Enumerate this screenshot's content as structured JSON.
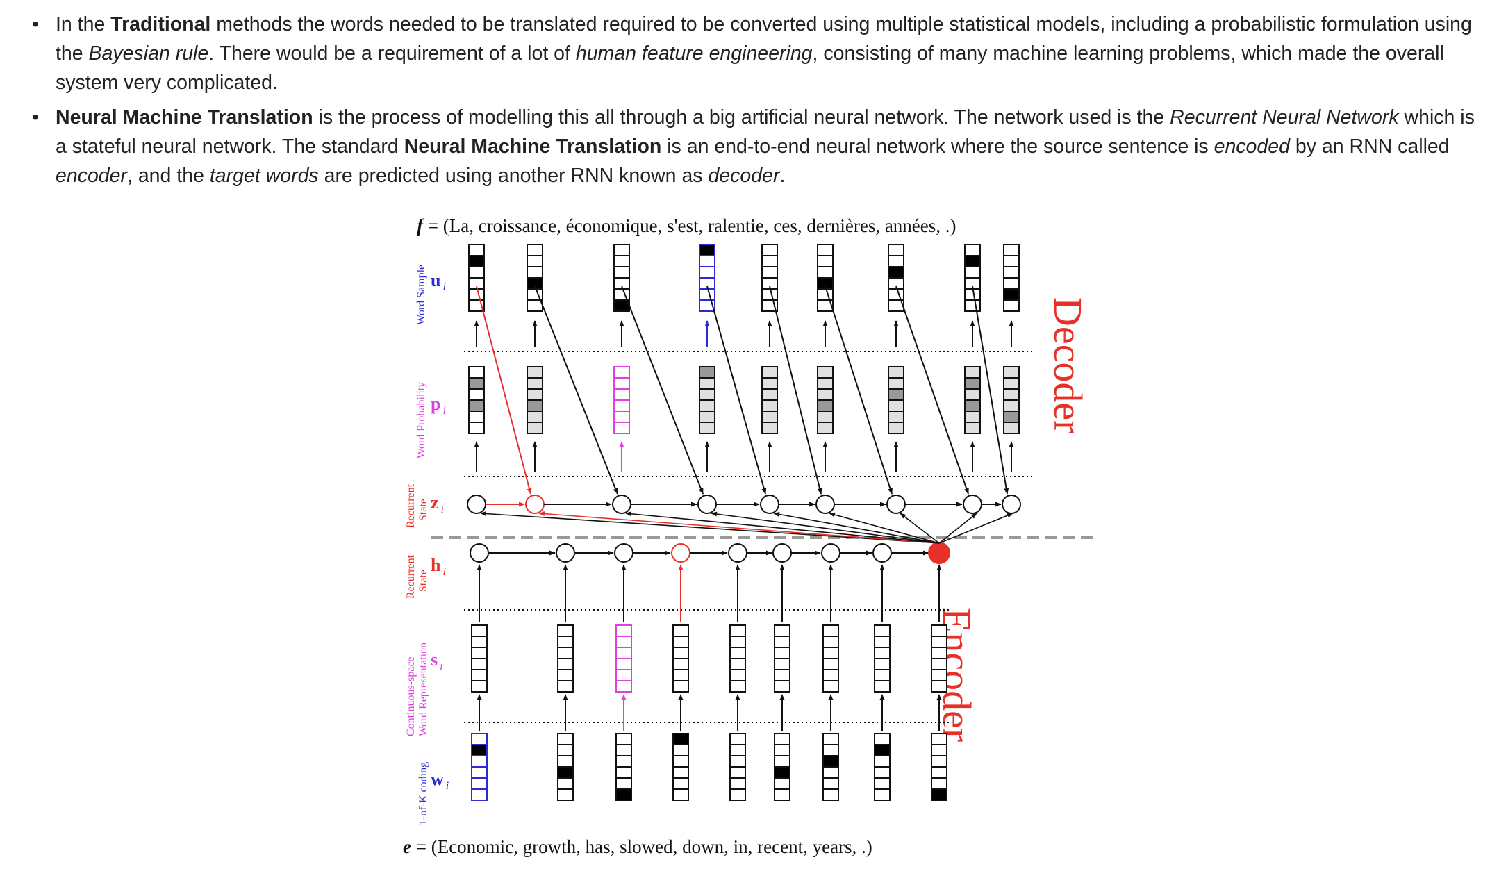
{
  "bullets": [
    {
      "parts": [
        {
          "t": "In the ",
          "s": "n"
        },
        {
          "t": "Traditional",
          "s": "b"
        },
        {
          "t": " methods the words needed to be translated required to be converted using multiple statistical models, including a probabilistic formulation using the ",
          "s": "n"
        },
        {
          "t": "Bayesian rule",
          "s": "i"
        },
        {
          "t": ". There would be a requirement of a lot of ",
          "s": "n"
        },
        {
          "t": "human feature engineering",
          "s": "i"
        },
        {
          "t": ", consisting of many machine learning problems, which made the overall system very complicated.",
          "s": "n"
        }
      ]
    },
    {
      "parts": [
        {
          "t": "Neural Machine Translation",
          "s": "b"
        },
        {
          "t": " is the process of modelling this all through a big artificial neural network. The network used is the ",
          "s": "n"
        },
        {
          "t": "Recurrent Neural Network",
          "s": "i"
        },
        {
          "t": " which is a stateful neural network. The standard ",
          "s": "n"
        },
        {
          "t": "Neural Machine Translation",
          "s": "b"
        },
        {
          "t": " is an end-to-end neural network where the source sentence is ",
          "s": "n"
        },
        {
          "t": "encoded",
          "s": "i"
        },
        {
          "t": " by an RNN called ",
          "s": "n"
        },
        {
          "t": "encoder",
          "s": "i"
        },
        {
          "t": ", and the ",
          "s": "n"
        },
        {
          "t": "target words",
          "s": "i"
        },
        {
          "t": " are predicted using another RNN known as ",
          "s": "n"
        },
        {
          "t": "decoder",
          "s": "i"
        },
        {
          "t": ".",
          "s": "n"
        }
      ]
    }
  ],
  "figure": {
    "top_caption_var": "f",
    "top_caption_rest": " = (La, croissance, économique, s'est, ralentie, ces, dernières, années, .)",
    "bottom_caption_var": "e",
    "bottom_caption_rest": " = (Economic, growth, has, slowed, down, in, recent, years, .)",
    "decoder_label": "Decoder",
    "encoder_label": "Encoder",
    "rows": {
      "u": {
        "side_label": "Word Sample",
        "symbol": "u",
        "sub": "i"
      },
      "p": {
        "side_label": "Word Probability",
        "symbol": "p",
        "sub": "i"
      },
      "z": {
        "side_label_1": "Recurrent",
        "side_label_2": "State",
        "symbol": "z",
        "sub": "i"
      },
      "h": {
        "side_label_1": "Recurrent",
        "side_label_2": "State",
        "symbol": "h",
        "sub": "i"
      },
      "s": {
        "side_label_1": "Continuous-space",
        "side_label_2": "Word Representation",
        "symbol": "s",
        "sub": "i"
      },
      "w": {
        "side_label": "1-of-K coding",
        "symbol": "w",
        "sub": "i"
      }
    },
    "colors": {
      "decoder_red": "#e8302a",
      "blue": "#2a2ad8",
      "magenta": "#e040e0",
      "black": "#111111",
      "gray": "#999999",
      "light_gray": "#dddddd"
    }
  }
}
